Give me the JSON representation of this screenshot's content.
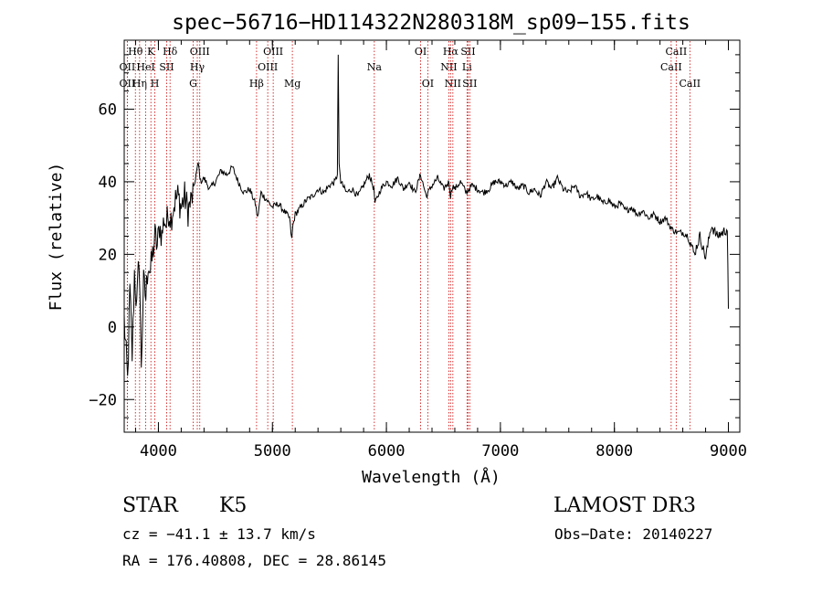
{
  "chart_data": {
    "type": "line",
    "title": "spec−56716−HD114322N280318M_sp09−155.fits",
    "xlabel": "Wavelength (Å)",
    "ylabel": "Flux (relative)",
    "xlim": [
      3700,
      9100
    ],
    "ylim": [
      -29,
      79
    ],
    "xticks": [
      4000,
      5000,
      6000,
      7000,
      8000,
      9000
    ],
    "yticks": [
      -20,
      0,
      20,
      40,
      60
    ],
    "xtick_labels": [
      "4000",
      "5000",
      "6000",
      "7000",
      "8000",
      "9000"
    ],
    "ytick_labels": [
      "−20",
      "0",
      "20",
      "40",
      "60"
    ],
    "grid": false,
    "series": [
      {
        "name": "spectrum",
        "x": [
          3700,
          3730,
          3750,
          3770,
          3790,
          3810,
          3830,
          3850,
          3870,
          3890,
          3910,
          3930,
          3950,
          3970,
          3990,
          4010,
          4030,
          4050,
          4070,
          4090,
          4110,
          4130,
          4150,
          4170,
          4200,
          4230,
          4260,
          4290,
          4310,
          4330,
          4350,
          4370,
          4400,
          4450,
          4500,
          4550,
          4600,
          4650,
          4700,
          4750,
          4800,
          4850,
          4870,
          4900,
          4950,
          5000,
          5050,
          5100,
          5150,
          5170,
          5180,
          5200,
          5250,
          5300,
          5350,
          5400,
          5450,
          5500,
          5550,
          5570,
          5577,
          5585,
          5600,
          5650,
          5700,
          5750,
          5800,
          5850,
          5890,
          5900,
          5950,
          6000,
          6050,
          6100,
          6150,
          6200,
          6250,
          6300,
          6350,
          6400,
          6450,
          6500,
          6550,
          6563,
          6580,
          6600,
          6650,
          6700,
          6750,
          6800,
          6850,
          6900,
          6950,
          7000,
          7050,
          7100,
          7150,
          7200,
          7250,
          7300,
          7350,
          7400,
          7450,
          7500,
          7550,
          7600,
          7650,
          7700,
          7750,
          7800,
          7850,
          7900,
          7950,
          8000,
          8050,
          8100,
          8150,
          8200,
          8250,
          8300,
          8350,
          8400,
          8450,
          8500,
          8550,
          8600,
          8650,
          8700,
          8750,
          8800,
          8850,
          8900,
          8950,
          8990,
          9000
        ],
        "values": [
          2,
          -15,
          10,
          -8,
          15,
          5,
          20,
          -10,
          12,
          8,
          18,
          15,
          20,
          25,
          22,
          28,
          25,
          30,
          28,
          32,
          30,
          33,
          35,
          36,
          33,
          36,
          32,
          35,
          38,
          42,
          45,
          40,
          41,
          38,
          40,
          43,
          42,
          44,
          40,
          37,
          38,
          34,
          30,
          37,
          35,
          33,
          34,
          32,
          30,
          24,
          28,
          31,
          33,
          35,
          36,
          38,
          37,
          39,
          40,
          42,
          75,
          45,
          40,
          37,
          38,
          36,
          39,
          42,
          38,
          34,
          38,
          40,
          39,
          41,
          38,
          40,
          37,
          42,
          36,
          39,
          41,
          38,
          40,
          36,
          39,
          38,
          40,
          37,
          39,
          38,
          37,
          38,
          40,
          40,
          39,
          40,
          38,
          39,
          37,
          38,
          36,
          40,
          38,
          41,
          38,
          37,
          39,
          36,
          37,
          35,
          36,
          34,
          35,
          33,
          34,
          32,
          33,
          31,
          32,
          30,
          31,
          29,
          30,
          27,
          26,
          26,
          25,
          20,
          25,
          19,
          28,
          25,
          26,
          27,
          5
        ]
      }
    ],
    "line_markers": [
      {
        "label": "OII",
        "x": 3727,
        "row": 2
      },
      {
        "label": "OII",
        "x": 3727,
        "row": 1
      },
      {
        "label": "Hθ",
        "x": 3798,
        "row": 0
      },
      {
        "label": "Hη",
        "x": 3835,
        "row": 2
      },
      {
        "label": "HeI",
        "x": 3889,
        "row": 1
      },
      {
        "label": "K",
        "x": 3934,
        "row": 0
      },
      {
        "label": "H",
        "x": 3969,
        "row": 2
      },
      {
        "label": "SII",
        "x": 4072,
        "row": 1
      },
      {
        "label": "Hδ",
        "x": 4102,
        "row": 0
      },
      {
        "label": "G",
        "x": 4305,
        "row": 2
      },
      {
        "label": "Hγ",
        "x": 4341,
        "row": 1
      },
      {
        "label": "OIII",
        "x": 4363,
        "row": 0
      },
      {
        "label": "Hβ",
        "x": 4861,
        "row": 2
      },
      {
        "label": "OIII",
        "x": 4959,
        "row": 1
      },
      {
        "label": "OIII",
        "x": 5007,
        "row": 0
      },
      {
        "label": "Mg",
        "x": 5175,
        "row": 2
      },
      {
        "label": "Na",
        "x": 5894,
        "row": 1
      },
      {
        "label": "OI",
        "x": 6300,
        "row": 0
      },
      {
        "label": "OI",
        "x": 6363,
        "row": 2
      },
      {
        "label": "NII",
        "x": 6548,
        "row": 1
      },
      {
        "label": "Hα",
        "x": 6563,
        "row": 0
      },
      {
        "label": "NII",
        "x": 6583,
        "row": 2
      },
      {
        "label": "Li",
        "x": 6707,
        "row": 1
      },
      {
        "label": "SII",
        "x": 6716,
        "row": 0
      },
      {
        "label": "SII",
        "x": 6731,
        "row": 2
      },
      {
        "label": "CaII",
        "x": 8498,
        "row": 1
      },
      {
        "label": "CaII",
        "x": 8542,
        "row": 0
      },
      {
        "label": "CaII",
        "x": 8662,
        "row": 2
      }
    ]
  },
  "info": {
    "object_class": "STAR",
    "subclass": "K5",
    "survey": "LAMOST DR3",
    "cz": "cz = −41.1 ± 13.7 km/s",
    "obs_date": "Obs−Date: 20140227",
    "radec": "RA = 176.40808, DEC =  28.86145"
  }
}
